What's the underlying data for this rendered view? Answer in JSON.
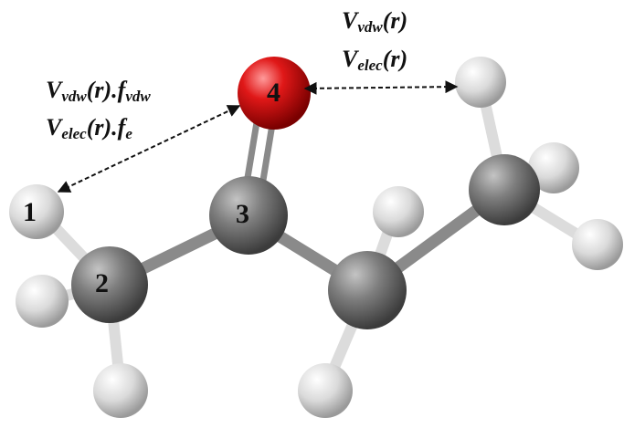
{
  "atoms": {
    "a1": "1",
    "a2": "2",
    "a3": "3",
    "a4": "4"
  },
  "labels": {
    "intra_vdw": {
      "base": "V",
      "sub": "vdw",
      "arg": "(r).",
      "factor": "f",
      "factor_sub": "vdw"
    },
    "intra_elec": {
      "base": "V",
      "sub": "elec",
      "arg": "(r).",
      "factor": "f",
      "factor_sub": "e"
    },
    "inter_vdw": {
      "base": "V",
      "sub": "vdw",
      "arg": "(r)"
    },
    "inter_elec": {
      "base": "V",
      "sub": "elec",
      "arg": "(r)"
    }
  },
  "colors": {
    "carbon": "#7a7a7a",
    "hydrogen": "#e4e4e4",
    "oxygen": "#e01818",
    "arrow": "#111111"
  }
}
